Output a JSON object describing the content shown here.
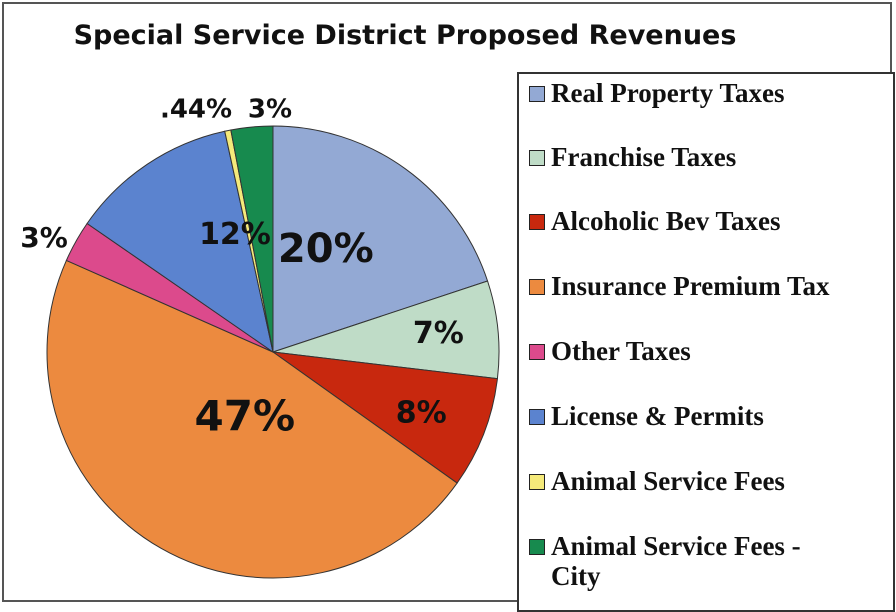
{
  "chart_data": {
    "type": "pie",
    "title": "Special Service District Proposed Revenues",
    "slices": [
      {
        "name": "Real Property Taxes",
        "value": 20,
        "label": "20%",
        "color": "#93a9d4"
      },
      {
        "name": "Franchise Taxes",
        "value": 7,
        "label": "7%",
        "color": "#bfdcc7"
      },
      {
        "name": "Alcoholic Bev Taxes",
        "value": 8,
        "label": "8%",
        "color": "#c8280e"
      },
      {
        "name": "Insurance Premium Tax",
        "value": 47,
        "label": "47%",
        "color": "#ec8a3f"
      },
      {
        "name": "Other Taxes",
        "value": 3,
        "label": "3%",
        "color": "#dc4a8c"
      },
      {
        "name": "License & Permits",
        "value": 12,
        "label": "12%",
        "color": "#5b83cf"
      },
      {
        "name": "Animal Service Fees",
        "value": 0.44,
        "label": ".44%",
        "color": "#f5ea7a"
      },
      {
        "name": "Animal Service Fees - City",
        "value": 3,
        "label": "3%",
        "color": "#178a4e"
      }
    ],
    "legend_position": "right"
  }
}
